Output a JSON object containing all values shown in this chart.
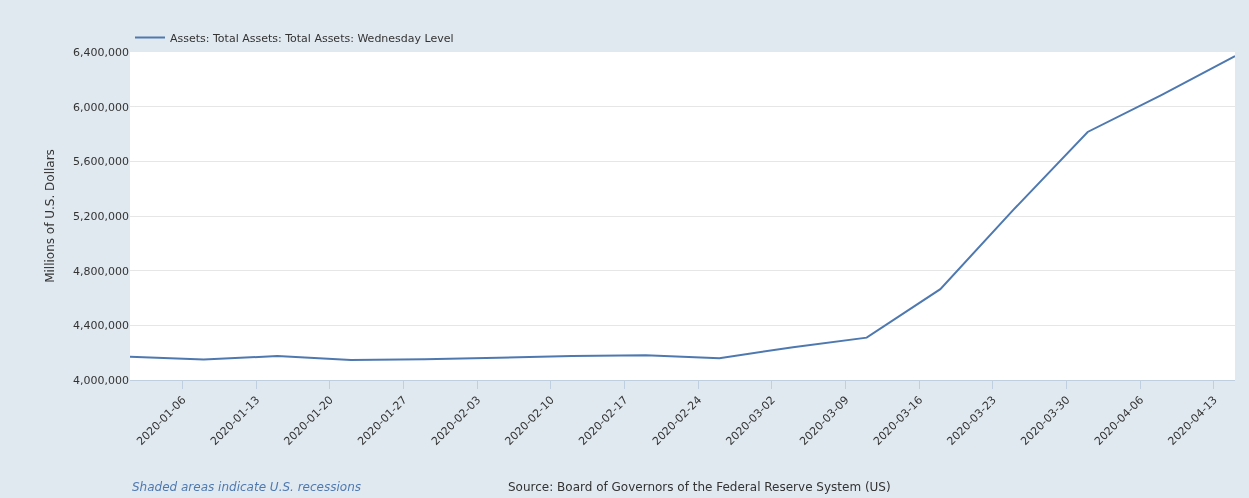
{
  "chart_data": {
    "type": "line",
    "x": [
      "2020-01-01",
      "2020-01-08",
      "2020-01-15",
      "2020-01-22",
      "2020-01-29",
      "2020-02-05",
      "2020-02-12",
      "2020-02-19",
      "2020-02-26",
      "2020-03-04",
      "2020-03-11",
      "2020-03-18",
      "2020-03-25",
      "2020-04-01",
      "2020-04-08",
      "2020-04-15"
    ],
    "series": [
      {
        "name": "Assets: Total Assets: Total Assets: Wednesday Level",
        "color": "#4e79b0",
        "values": [
          4170000,
          4150000,
          4175000,
          4147000,
          4152000,
          4163000,
          4175000,
          4182000,
          4159000,
          4240000,
          4310000,
          4665000,
          5250000,
          5815000,
          6085000,
          6370000
        ]
      }
    ],
    "ylabel": "Millions of U.S. Dollars",
    "xlim": [
      "2020-01-01",
      "2020-04-15"
    ],
    "xticks": [
      "2020-01-06",
      "2020-01-13",
      "2020-01-20",
      "2020-01-27",
      "2020-02-03",
      "2020-02-10",
      "2020-02-17",
      "2020-02-24",
      "2020-03-02",
      "2020-03-09",
      "2020-03-16",
      "2020-03-23",
      "2020-03-30",
      "2020-04-06",
      "2020-04-13"
    ],
    "ylim": [
      4000000,
      6400000
    ],
    "yticks": [
      {
        "value": 4000000,
        "label": "4,000,000"
      },
      {
        "value": 4400000,
        "label": "4,400,000"
      },
      {
        "value": 4800000,
        "label": "4,800,000"
      },
      {
        "value": 5200000,
        "label": "5,200,000"
      },
      {
        "value": 5600000,
        "label": "5,600,000"
      },
      {
        "value": 6000000,
        "label": "6,000,000"
      },
      {
        "value": 6400000,
        "label": "6,400,000"
      }
    ],
    "grid": "y",
    "legend": "top left",
    "marker": "none",
    "line_style": "solid",
    "annotations": [
      "Shaded areas indicate U.S. recessions",
      "Source: Board of Governors of the Federal Reserve System (US)"
    ]
  }
}
